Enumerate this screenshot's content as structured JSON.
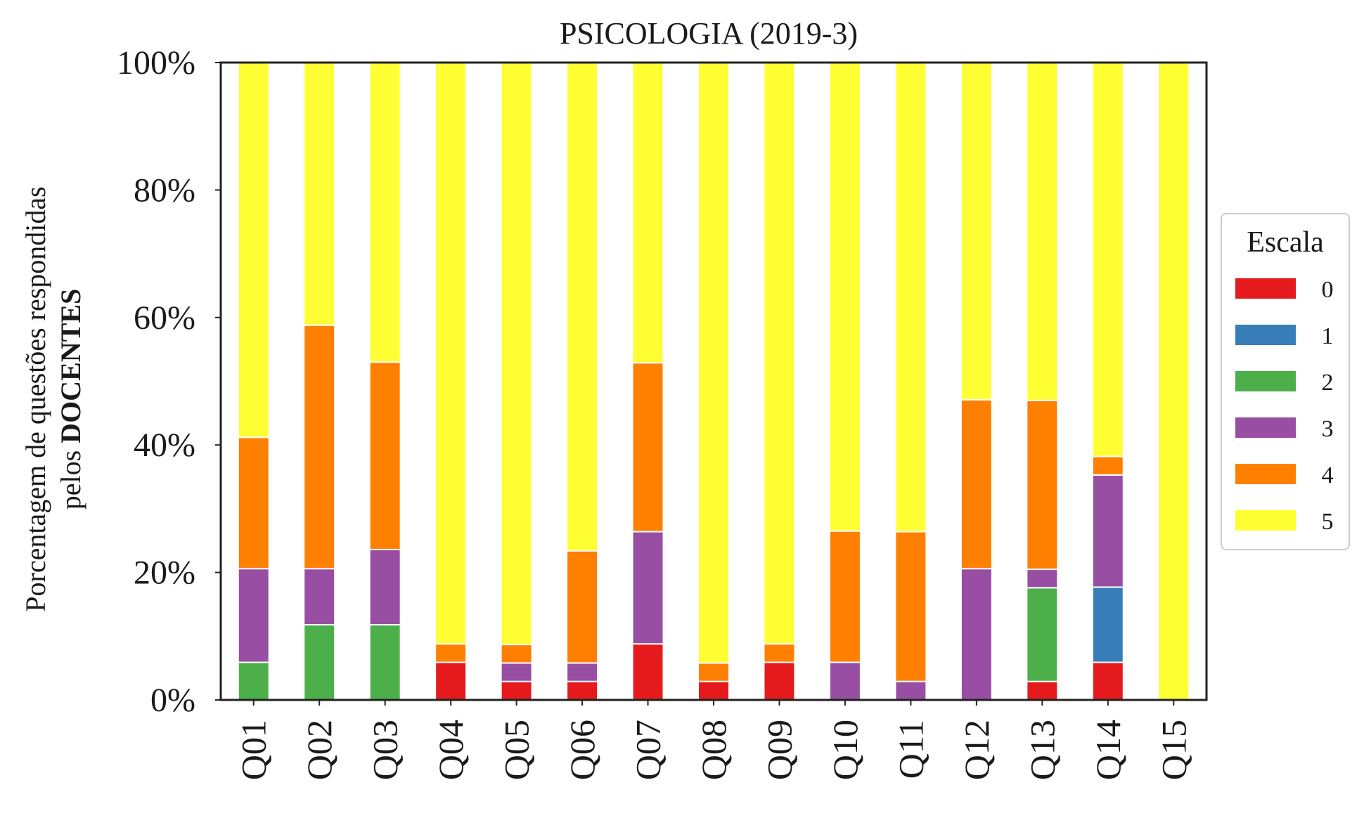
{
  "chart_data": {
    "type": "bar",
    "stacked": true,
    "title": "PSICOLOGIA (2019-3)",
    "ylabel_line1": "Porcentagem de questões respondidas",
    "ylabel_line2_prefix": "pelos ",
    "ylabel_line2_bold": "DOCENTES",
    "xlabel": "",
    "ylim": [
      0,
      100
    ],
    "yticks": [
      0,
      20,
      40,
      60,
      80,
      100
    ],
    "ytick_labels": [
      "0%",
      "20%",
      "40%",
      "60%",
      "80%",
      "100%"
    ],
    "categories": [
      "Q01",
      "Q02",
      "Q03",
      "Q04",
      "Q05",
      "Q06",
      "Q07",
      "Q08",
      "Q09",
      "Q10",
      "Q11",
      "Q12",
      "Q13",
      "Q14",
      "Q15"
    ],
    "legend": {
      "title": "Escala",
      "placement": "right"
    },
    "series": [
      {
        "name": "0",
        "color": "#e41a1c",
        "values": [
          0,
          0,
          0,
          5.9,
          2.9,
          2.9,
          8.8,
          2.9,
          5.9,
          0,
          0,
          0,
          2.9,
          5.9,
          0
        ]
      },
      {
        "name": "1",
        "color": "#377eb8",
        "values": [
          0,
          0,
          0,
          0,
          0,
          0,
          0,
          0,
          0,
          0,
          0,
          0,
          0,
          11.8,
          0
        ]
      },
      {
        "name": "2",
        "color": "#4daf4a",
        "values": [
          5.9,
          11.8,
          11.8,
          0,
          0,
          0,
          0,
          0,
          0,
          0,
          0,
          0,
          14.7,
          0,
          0
        ]
      },
      {
        "name": "3",
        "color": "#984ea3",
        "values": [
          14.7,
          8.8,
          11.8,
          0,
          2.9,
          2.9,
          17.6,
          0,
          0,
          5.9,
          2.9,
          20.6,
          2.9,
          17.6,
          0
        ]
      },
      {
        "name": "4",
        "color": "#ff7f00",
        "values": [
          20.6,
          38.2,
          29.4,
          2.9,
          2.9,
          17.6,
          26.5,
          2.9,
          2.9,
          20.6,
          23.5,
          26.5,
          26.5,
          2.9,
          0
        ]
      },
      {
        "name": "5",
        "color": "#ffff33",
        "values": [
          58.8,
          41.2,
          47.0,
          91.2,
          91.3,
          76.6,
          47.1,
          94.2,
          91.2,
          73.5,
          73.6,
          52.9,
          53.0,
          61.8,
          100
        ]
      }
    ]
  }
}
